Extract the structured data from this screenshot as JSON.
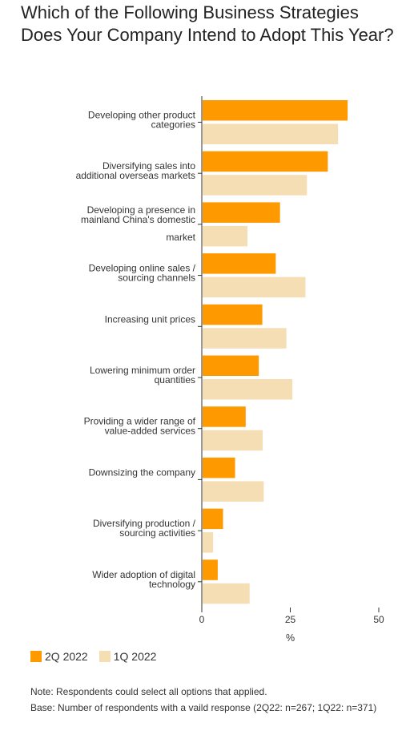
{
  "title": "Which of the Following Business Strategies Does Your Company Intend to Adopt This Year?",
  "chart_data": {
    "type": "bar",
    "orientation": "horizontal",
    "categories": [
      [
        "Developing other product",
        "categories"
      ],
      [
        "Diversifying sales into",
        "additional overseas markets"
      ],
      [
        "Developing a presence in",
        "mainland China's domestic",
        "market"
      ],
      [
        "Developing online sales /",
        "sourcing channels"
      ],
      [
        "Increasing unit prices"
      ],
      [
        "Lowering minimum order",
        "quantities"
      ],
      [
        "Providing a wider range of",
        "value-added services"
      ],
      [
        "Downsizing the company"
      ],
      [
        "Diversifying production /",
        "sourcing activities"
      ],
      [
        "Wider adoption of digital",
        "technology"
      ]
    ],
    "series": [
      {
        "name": "2Q 2022",
        "color": "#ff9900",
        "values": [
          41.2,
          35.6,
          22.1,
          20.9,
          17.1,
          16.1,
          12.4,
          9.4,
          6.0,
          4.5
        ]
      },
      {
        "name": "1Q 2022",
        "color": "#f5deb3",
        "values": [
          38.5,
          29.7,
          12.9,
          29.3,
          23.9,
          25.6,
          17.2,
          17.5,
          3.2,
          13.5
        ]
      }
    ],
    "xlim": [
      0,
      50
    ],
    "xticks": [
      0,
      25,
      50
    ],
    "xlabel": "%",
    "ylabel": "",
    "grid": false,
    "legend_position": "bottom-left"
  },
  "legend": [
    {
      "label": "2Q 2022",
      "color": "#ff9900"
    },
    {
      "label": "1Q 2022",
      "color": "#f5deb3"
    }
  ],
  "notes": [
    "Note: Respondents could select all options that applied.",
    "Base: Number of respondents with a vaild response (2Q22: n=267; 1Q22: n=371)"
  ]
}
